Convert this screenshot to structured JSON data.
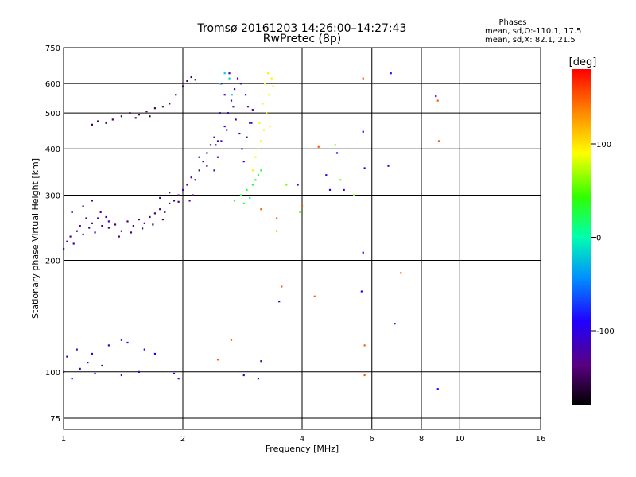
{
  "chart_data": {
    "type": "scatter",
    "title": "Tromsø 20161203 14:26:00–14:27:43",
    "subtitle": "RwPretec (8p)",
    "xlabel": "Frequency [MHz]",
    "ylabel": "Stationary phase Virtual Height [km]",
    "x_scale": "log",
    "y_scale": "log",
    "xlim": [
      1,
      16
    ],
    "ylim": [
      70,
      750
    ],
    "x_ticks": [
      1,
      2,
      4,
      6,
      8,
      10,
      16
    ],
    "y_ticks": [
      75,
      100,
      200,
      300,
      400,
      500,
      600,
      750
    ],
    "grid": true,
    "stats": {
      "title": "Phases",
      "line1": "mean, sd,O:-110.1, 17.5",
      "line2": "mean, sd,X:  82.1, 21.5"
    },
    "colorbar": {
      "label": "[deg]",
      "range": [
        -180,
        180
      ],
      "ticks": [
        100,
        0,
        -100
      ]
    },
    "series": [
      {
        "color_value": -120,
        "points": [
          [
            1.0,
            215
          ],
          [
            1.02,
            225
          ],
          [
            1.04,
            232
          ],
          [
            1.06,
            222
          ],
          [
            1.08,
            240
          ],
          [
            1.1,
            248
          ],
          [
            1.12,
            235
          ],
          [
            1.14,
            260
          ],
          [
            1.16,
            245
          ],
          [
            1.18,
            252
          ],
          [
            1.2,
            238
          ],
          [
            1.22,
            260
          ],
          [
            1.25,
            248
          ],
          [
            1.28,
            262
          ],
          [
            1.05,
            270
          ],
          [
            1.12,
            280
          ],
          [
            1.18,
            290
          ],
          [
            1.24,
            270
          ],
          [
            1.3,
            255
          ]
        ]
      },
      {
        "color_value": -145,
        "points": [
          [
            1.3,
            245
          ],
          [
            1.35,
            250
          ],
          [
            1.4,
            240
          ],
          [
            1.45,
            255
          ],
          [
            1.5,
            248
          ],
          [
            1.55,
            258
          ],
          [
            1.6,
            252
          ],
          [
            1.65,
            262
          ],
          [
            1.7,
            268
          ],
          [
            1.75,
            275
          ],
          [
            1.8,
            270
          ],
          [
            1.85,
            285
          ],
          [
            1.9,
            290
          ],
          [
            1.95,
            288
          ],
          [
            1.38,
            232
          ],
          [
            1.48,
            238
          ],
          [
            1.58,
            244
          ],
          [
            1.68,
            250
          ],
          [
            1.78,
            258
          ]
        ]
      },
      {
        "color_value": -130,
        "points": [
          [
            1.75,
            295
          ],
          [
            1.85,
            305
          ],
          [
            1.95,
            300
          ],
          [
            2.0,
            310
          ],
          [
            2.05,
            320
          ],
          [
            2.1,
            335
          ],
          [
            2.15,
            330
          ],
          [
            2.2,
            350
          ],
          [
            2.25,
            370
          ],
          [
            2.3,
            390
          ],
          [
            2.35,
            410
          ],
          [
            2.4,
            430
          ],
          [
            2.45,
            420
          ],
          [
            2.3,
            360
          ],
          [
            2.2,
            380
          ],
          [
            2.12,
            300
          ],
          [
            2.08,
            290
          ]
        ]
      },
      {
        "color_value": -150,
        "points": [
          [
            1.18,
            465
          ],
          [
            1.22,
            475
          ],
          [
            1.28,
            470
          ],
          [
            1.33,
            480
          ],
          [
            1.4,
            490
          ],
          [
            1.47,
            500
          ],
          [
            1.55,
            495
          ],
          [
            1.62,
            505
          ],
          [
            1.7,
            515
          ],
          [
            1.78,
            520
          ],
          [
            1.85,
            530
          ],
          [
            1.92,
            560
          ],
          [
            2.0,
            590
          ],
          [
            2.05,
            610
          ],
          [
            2.1,
            625
          ],
          [
            2.15,
            615
          ],
          [
            1.65,
            490
          ],
          [
            1.52,
            485
          ]
        ]
      },
      {
        "color_value": -115,
        "points": [
          [
            2.4,
            350
          ],
          [
            2.45,
            380
          ],
          [
            2.5,
            420
          ],
          [
            2.55,
            460
          ],
          [
            2.6,
            500
          ],
          [
            2.65,
            540
          ],
          [
            2.7,
            580
          ],
          [
            2.75,
            620
          ],
          [
            2.62,
            640
          ],
          [
            2.5,
            600
          ],
          [
            2.55,
            560
          ],
          [
            2.68,
            520
          ],
          [
            2.72,
            480
          ],
          [
            2.78,
            440
          ],
          [
            2.82,
            400
          ],
          [
            2.85,
            370
          ],
          [
            2.9,
            430
          ],
          [
            2.95,
            470
          ],
          [
            3.0,
            510
          ],
          [
            2.88,
            560
          ],
          [
            2.8,
            600
          ],
          [
            2.58,
            450
          ],
          [
            2.42,
            410
          ],
          [
            2.48,
            500
          ],
          [
            2.92,
            520
          ],
          [
            2.98,
            470
          ]
        ]
      },
      {
        "color_value": -20,
        "points": [
          [
            2.55,
            640
          ],
          [
            2.62,
            620
          ],
          [
            2.48,
            600
          ],
          [
            2.66,
            560
          ]
        ]
      },
      {
        "color_value": 30,
        "points": [
          [
            2.7,
            290
          ],
          [
            2.8,
            300
          ],
          [
            2.9,
            310
          ],
          [
            3.0,
            320
          ],
          [
            3.05,
            330
          ],
          [
            3.1,
            340
          ],
          [
            3.15,
            350
          ],
          [
            2.95,
            295
          ],
          [
            2.85,
            285
          ]
        ]
      },
      {
        "color_value": 95,
        "points": [
          [
            3.0,
            350
          ],
          [
            3.05,
            380
          ],
          [
            3.1,
            400
          ],
          [
            3.15,
            420
          ],
          [
            3.2,
            450
          ],
          [
            3.25,
            500
          ],
          [
            3.3,
            560
          ],
          [
            3.35,
            620
          ],
          [
            3.28,
            640
          ],
          [
            3.22,
            600
          ],
          [
            3.18,
            530
          ],
          [
            3.12,
            470
          ],
          [
            3.38,
            590
          ],
          [
            3.32,
            460
          ]
        ]
      },
      {
        "color_value": -110,
        "points": [
          [
            1.0,
            100
          ],
          [
            1.05,
            96
          ],
          [
            1.1,
            102
          ],
          [
            1.15,
            106
          ],
          [
            1.2,
            99
          ],
          [
            1.25,
            104
          ],
          [
            1.02,
            110
          ],
          [
            1.08,
            115
          ],
          [
            1.18,
            112
          ],
          [
            1.3,
            118
          ],
          [
            1.4,
            122
          ],
          [
            1.4,
            98
          ],
          [
            1.55,
            100
          ],
          [
            1.9,
            99
          ],
          [
            1.95,
            96
          ],
          [
            2.85,
            98
          ],
          [
            3.1,
            96
          ],
          [
            3.15,
            107
          ],
          [
            3.5,
            155
          ]
        ]
      },
      {
        "color_value": -90,
        "points": [
          [
            1.45,
            120
          ],
          [
            1.6,
            115
          ],
          [
            1.7,
            112
          ],
          [
            3.9,
            320
          ],
          [
            4.6,
            340
          ],
          [
            4.9,
            390
          ],
          [
            5.1,
            310
          ],
          [
            5.7,
            445
          ],
          [
            5.75,
            355
          ],
          [
            6.6,
            360
          ],
          [
            6.85,
            135
          ],
          [
            5.7,
            210
          ],
          [
            5.65,
            165
          ],
          [
            6.7,
            640
          ],
          [
            8.7,
            555
          ],
          [
            8.8,
            90
          ],
          [
            4.7,
            310
          ]
        ]
      },
      {
        "color_value": 150,
        "points": [
          [
            2.45,
            108
          ],
          [
            2.65,
            122
          ],
          [
            3.15,
            275
          ],
          [
            3.45,
            260
          ],
          [
            3.55,
            170
          ],
          [
            4.3,
            160
          ],
          [
            4.4,
            405
          ],
          [
            5.7,
            620
          ],
          [
            5.75,
            98
          ],
          [
            5.75,
            118
          ],
          [
            7.1,
            185
          ],
          [
            8.85,
            420
          ],
          [
            8.8,
            540
          ],
          [
            4.0,
            280
          ]
        ]
      },
      {
        "color_value": 60,
        "points": [
          [
            3.45,
            240
          ],
          [
            3.65,
            320
          ],
          [
            3.95,
            270
          ],
          [
            4.85,
            410
          ],
          [
            5.0,
            330
          ],
          [
            5.4,
            300
          ]
        ]
      }
    ]
  }
}
